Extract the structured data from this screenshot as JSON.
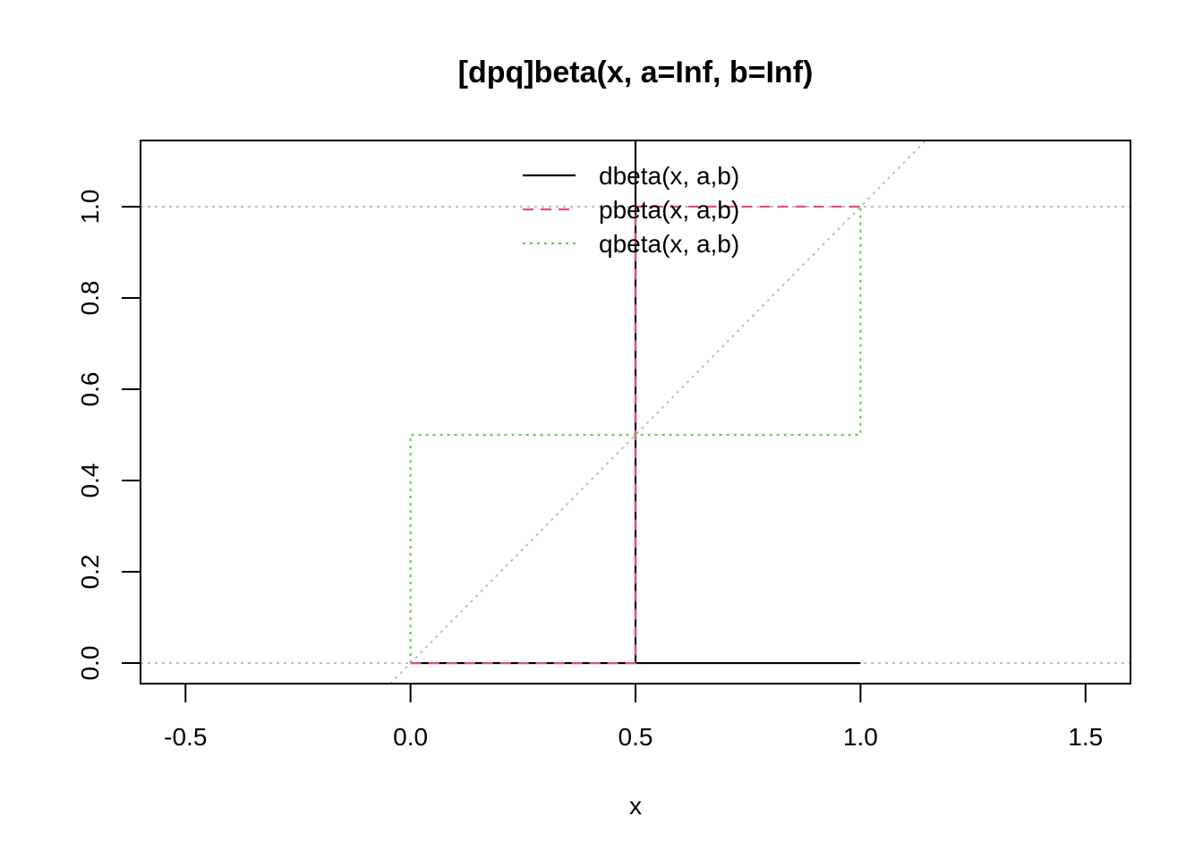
{
  "chart_data": {
    "type": "line",
    "title": "[dpq]beta(x, a=Inf, b=Inf)",
    "xlabel": "x",
    "ylabel": "",
    "xlim": [
      -0.6,
      1.6
    ],
    "ylim": [
      -0.045,
      1.145
    ],
    "xticks": [
      "-0.5",
      "0.0",
      "0.5",
      "1.0",
      "1.5"
    ],
    "yticks": [
      "0.0",
      "0.2",
      "0.4",
      "0.6",
      "0.8",
      "1.0"
    ],
    "legend_position": "top-center",
    "reference_lines": {
      "horizontal": [
        0,
        1
      ],
      "diagonal": "y = x",
      "color": "#bebebe",
      "style": "dotted"
    },
    "series": [
      {
        "name": "dbeta(x, a,b)",
        "color": "#000000",
        "style": "solid",
        "x": [
          0,
          0.5,
          0.5,
          0.5,
          1
        ],
        "y": [
          0,
          0,
          1.145,
          0,
          0
        ]
      },
      {
        "name": "pbeta(x, a,b)",
        "color": "#df536b",
        "style": "dashed",
        "x": [
          0,
          0.5,
          0.5,
          1
        ],
        "y": [
          0,
          0,
          1,
          1
        ]
      },
      {
        "name": "qbeta(x, a,b)",
        "color": "#61d04f",
        "style": "dotted",
        "x": [
          0,
          0,
          1,
          1
        ],
        "y": [
          0,
          0.5,
          0.5,
          1
        ]
      }
    ]
  }
}
